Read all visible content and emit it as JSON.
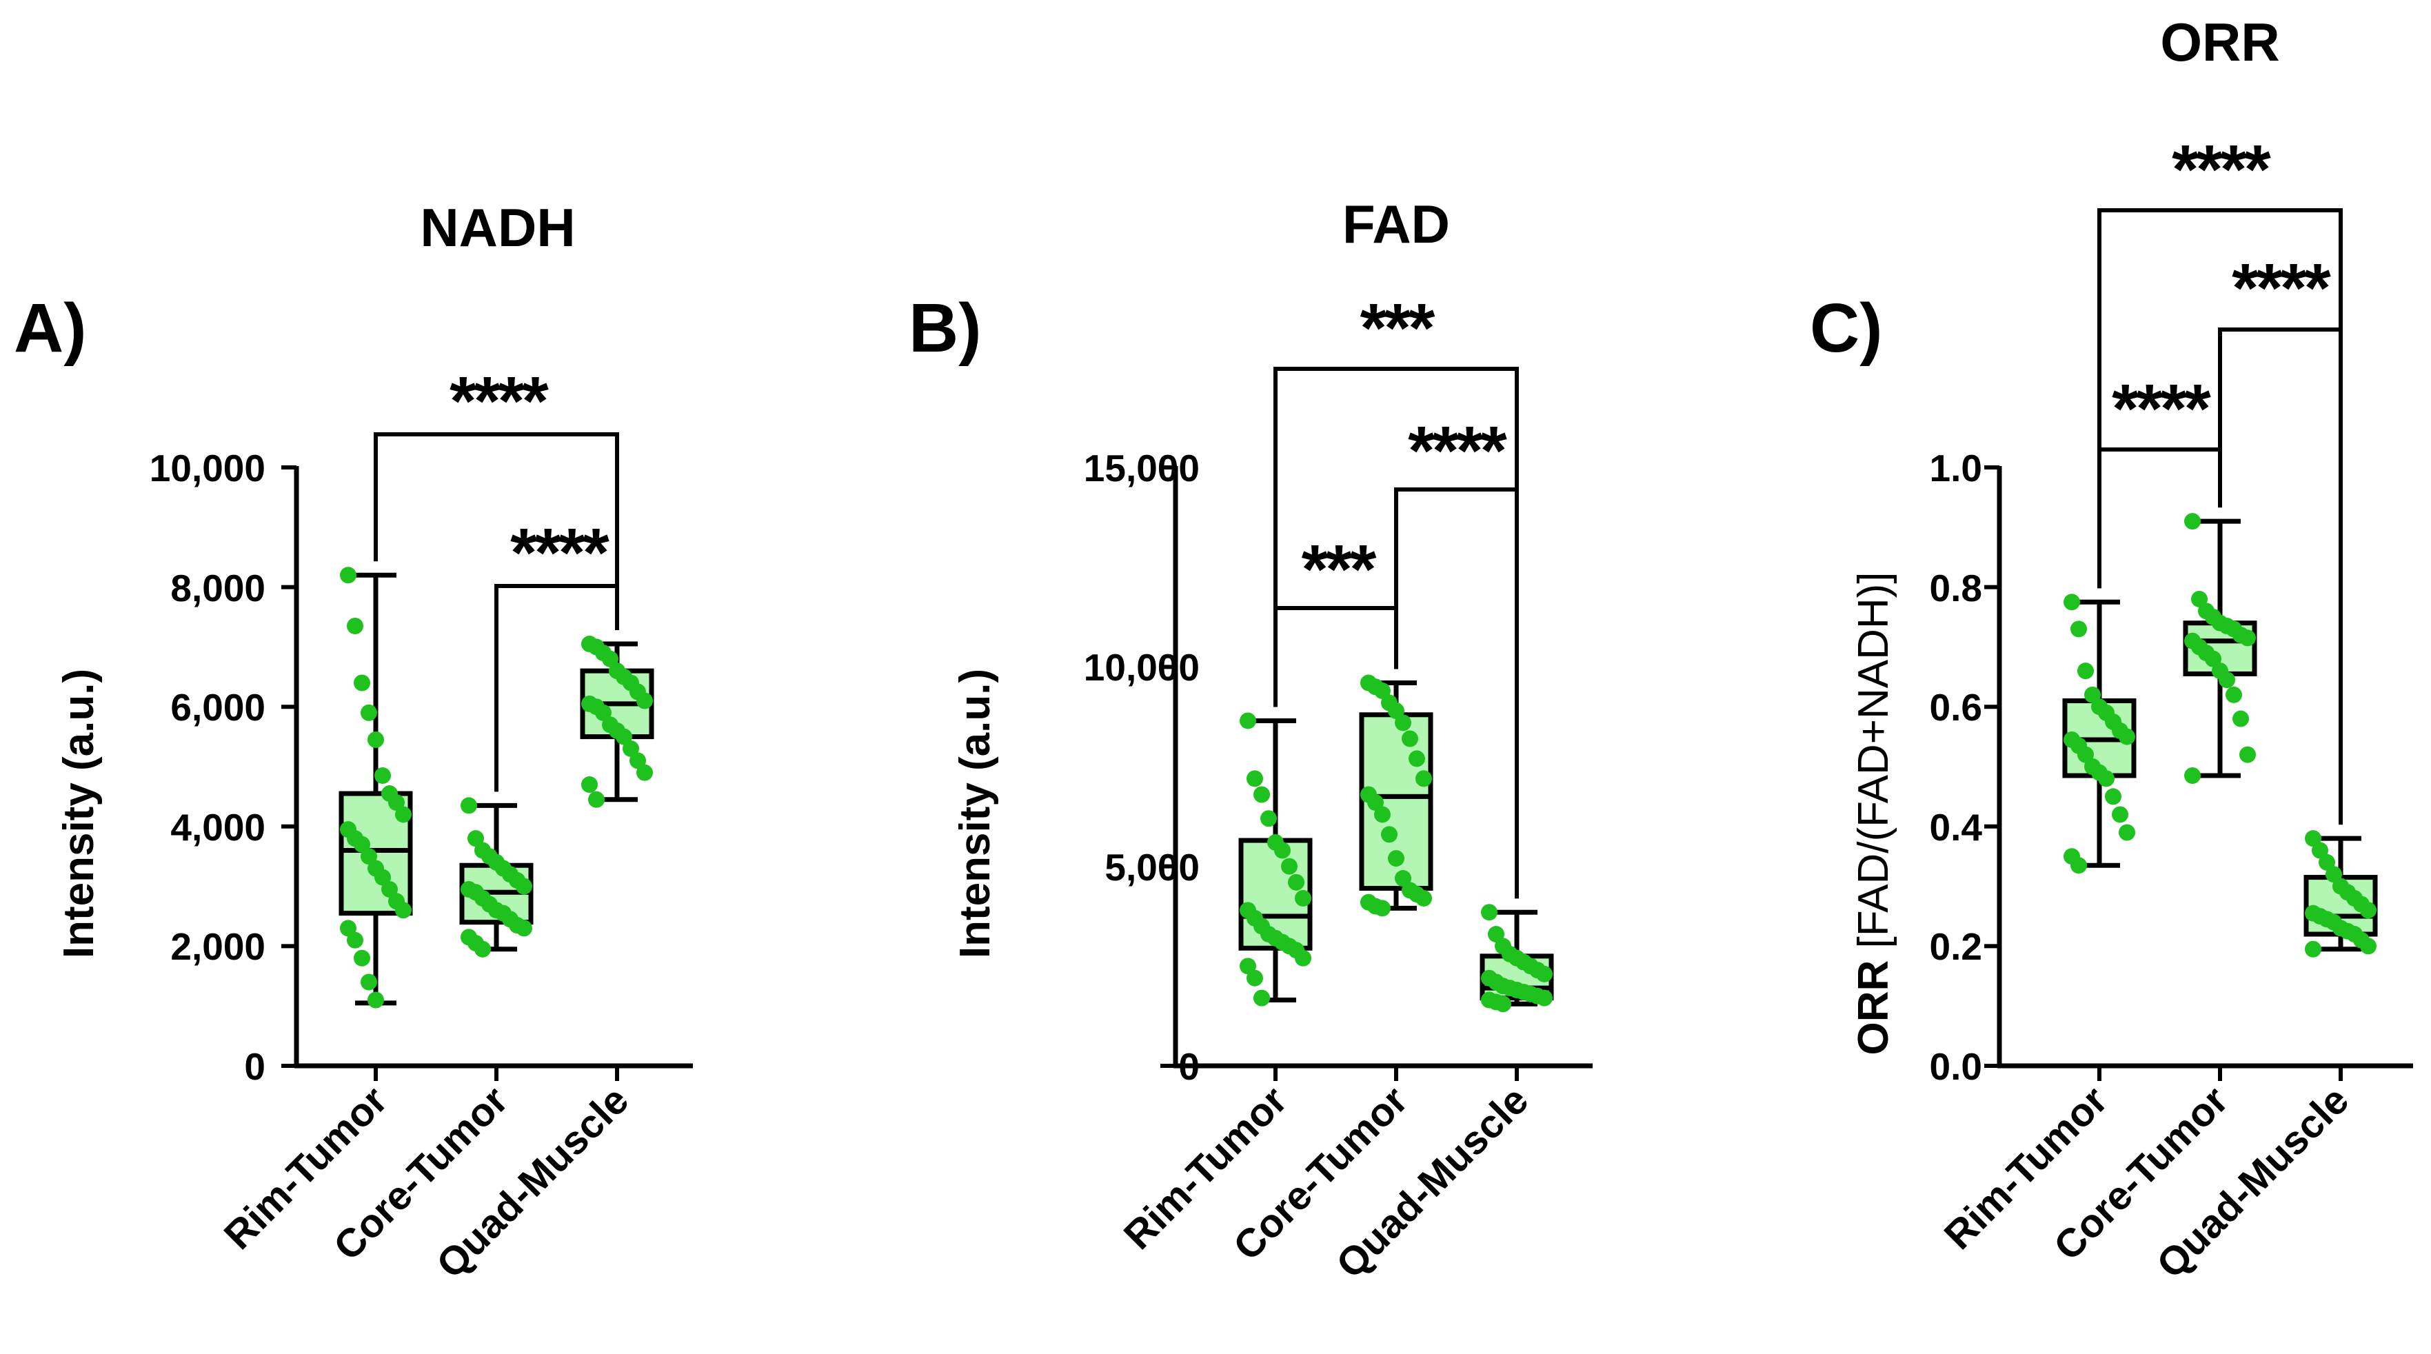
{
  "colors": {
    "box_fill": "#b3f5b3",
    "point": "#1fc11f",
    "ink": "#000000"
  },
  "chart_data": [
    {
      "type": "box",
      "panel": "A)",
      "title": "NADH",
      "ylabel": "Intensity (a.u.)",
      "ylim": [
        0,
        10000
      ],
      "yticks": [
        0,
        2000,
        4000,
        6000,
        8000,
        10000
      ],
      "ytick_labels": [
        "0",
        "2,000",
        "4,000",
        "6,000",
        "8,000",
        "10,000"
      ],
      "categories": [
        "Rim-Tumor",
        "Core-Tumor",
        "Quad-Muscle"
      ],
      "boxes": [
        {
          "min": 1050,
          "q1": 2550,
          "median": 3600,
          "q3": 4550,
          "max": 8200
        },
        {
          "min": 1950,
          "q1": 2400,
          "median": 2900,
          "q3": 3350,
          "max": 4350
        },
        {
          "min": 4450,
          "q1": 5500,
          "median": 6050,
          "q3": 6600,
          "max": 7050
        }
      ],
      "points": [
        [
          8200,
          7350,
          6400,
          5900,
          5450,
          4850,
          4550,
          4400,
          4200,
          3950,
          3800,
          3700,
          3500,
          3300,
          3150,
          2950,
          2750,
          2600,
          2300,
          2100,
          1800,
          1400,
          1100
        ],
        [
          4350,
          3800,
          3600,
          3500,
          3400,
          3300,
          3200,
          3100,
          3000,
          2950,
          2900,
          2800,
          2700,
          2600,
          2550,
          2450,
          2350,
          2300,
          2150,
          2050,
          1950
        ],
        [
          7050,
          7000,
          6900,
          6800,
          6600,
          6500,
          6400,
          6250,
          6100,
          6050,
          6000,
          5900,
          5700,
          5600,
          5500,
          5300,
          5100,
          4900,
          4700,
          4450
        ]
      ],
      "significance": [
        {
          "from": 0,
          "to": 2,
          "label": "****"
        },
        {
          "from": 1,
          "to": 2,
          "label": "****"
        }
      ]
    },
    {
      "type": "box",
      "panel": "B)",
      "title": "FAD",
      "ylabel": "Intensity (a.u.)",
      "ylim": [
        0,
        15000
      ],
      "yticks": [
        0,
        5000,
        10000,
        15000
      ],
      "ytick_labels": [
        "0",
        "5,000",
        "10,000",
        "15,000"
      ],
      "categories": [
        "Rim-Tumor",
        "Core-Tumor",
        "Quad-Muscle"
      ],
      "boxes": [
        {
          "min": 1650,
          "q1": 2950,
          "median": 3750,
          "q3": 5650,
          "max": 8650
        },
        {
          "min": 3950,
          "q1": 4450,
          "median": 6750,
          "q3": 8800,
          "max": 9600
        },
        {
          "min": 1550,
          "q1": 1700,
          "median": 1950,
          "q3": 2750,
          "max": 3850
        }
      ],
      "points": [
        [
          8650,
          7200,
          6800,
          6200,
          5600,
          5400,
          5000,
          4600,
          4200,
          3900,
          3700,
          3500,
          3300,
          3200,
          3100,
          3000,
          2900,
          2700,
          2500,
          2200,
          1700
        ],
        [
          9600,
          9500,
          9400,
          9100,
          8900,
          8600,
          8200,
          7700,
          7200,
          6800,
          6600,
          6300,
          5800,
          5200,
          4700,
          4400,
          4300,
          4200,
          4100,
          4000,
          3950
        ],
        [
          3850,
          3300,
          3000,
          2800,
          2700,
          2600,
          2500,
          2400,
          2300,
          2200,
          2100,
          2000,
          1950,
          1900,
          1850,
          1800,
          1750,
          1700,
          1650,
          1600,
          1550
        ]
      ],
      "significance": [
        {
          "from": 0,
          "to": 2,
          "label": "***"
        },
        {
          "from": 1,
          "to": 2,
          "label": "****"
        },
        {
          "from": 0,
          "to": 1,
          "label": "***"
        }
      ]
    },
    {
      "type": "box",
      "panel": "C)",
      "title": "ORR",
      "ylabel_bold": "ORR",
      "ylabel_rest": "[FAD/(FAD+NADH)]",
      "ylim": [
        0,
        1.0
      ],
      "yticks": [
        0,
        0.2,
        0.4,
        0.6,
        0.8,
        1.0
      ],
      "ytick_labels": [
        "0.0",
        "0.2",
        "0.4",
        "0.6",
        "0.8",
        "1.0"
      ],
      "categories": [
        "Rim-Tumor",
        "Core-Tumor",
        "Quad-Muscle"
      ],
      "boxes": [
        {
          "min": 0.335,
          "q1": 0.485,
          "median": 0.545,
          "q3": 0.61,
          "max": 0.775
        },
        {
          "min": 0.485,
          "q1": 0.655,
          "median": 0.71,
          "q3": 0.74,
          "max": 0.91
        },
        {
          "min": 0.195,
          "q1": 0.22,
          "median": 0.25,
          "q3": 0.315,
          "max": 0.38
        }
      ],
      "points": [
        [
          0.775,
          0.73,
          0.66,
          0.62,
          0.6,
          0.59,
          0.575,
          0.56,
          0.55,
          0.545,
          0.535,
          0.52,
          0.5,
          0.49,
          0.48,
          0.45,
          0.42,
          0.39,
          0.35,
          0.335
        ],
        [
          0.91,
          0.78,
          0.76,
          0.75,
          0.74,
          0.735,
          0.73,
          0.72,
          0.715,
          0.71,
          0.7,
          0.69,
          0.68,
          0.66,
          0.645,
          0.62,
          0.58,
          0.52,
          0.485
        ],
        [
          0.38,
          0.36,
          0.34,
          0.32,
          0.3,
          0.29,
          0.28,
          0.27,
          0.26,
          0.255,
          0.25,
          0.245,
          0.24,
          0.23,
          0.225,
          0.22,
          0.21,
          0.2,
          0.195
        ]
      ],
      "significance": [
        {
          "from": 0,
          "to": 2,
          "label": "****"
        },
        {
          "from": 1,
          "to": 2,
          "label": "****"
        },
        {
          "from": 0,
          "to": 1,
          "label": "****"
        }
      ]
    }
  ]
}
